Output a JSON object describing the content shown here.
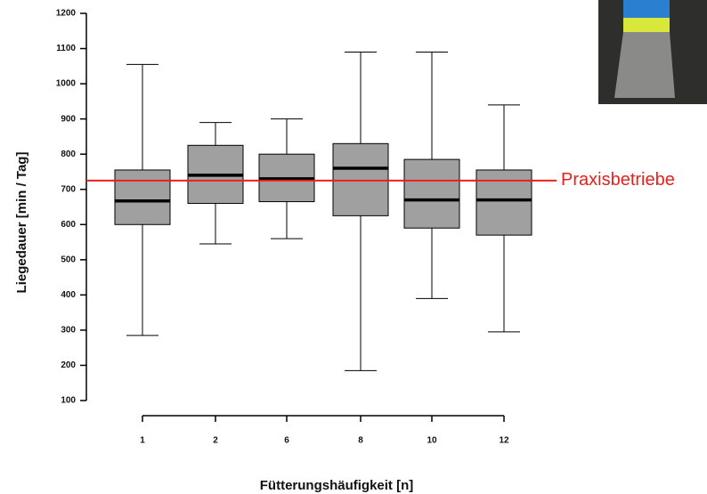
{
  "chart_data": {
    "type": "box",
    "y_label": "Liegedauer [min / Tag]",
    "x_label": "Fütterungshäufigkeit [n]",
    "categories": [
      "1",
      "2",
      "6",
      "8",
      "10",
      "12"
    ],
    "boxes": [
      {
        "whislo": 285,
        "q1": 600,
        "med": 667,
        "q3": 755,
        "whishi": 1055
      },
      {
        "whislo": 545,
        "q1": 660,
        "med": 740,
        "q3": 825,
        "whishi": 890
      },
      {
        "whislo": 560,
        "q1": 665,
        "med": 730,
        "q3": 800,
        "whishi": 900
      },
      {
        "whislo": 185,
        "q1": 625,
        "med": 760,
        "q3": 830,
        "whishi": 1090
      },
      {
        "whislo": 390,
        "q1": 590,
        "med": 670,
        "q3": 785,
        "whishi": 1090
      },
      {
        "whislo": 295,
        "q1": 570,
        "med": 670,
        "q3": 755,
        "whishi": 940
      }
    ],
    "color": "#a0a0a0",
    "ylim": [
      100,
      1200
    ],
    "yticks": [
      100,
      200,
      300,
      400,
      500,
      600,
      700,
      800,
      900,
      1000,
      1100,
      1200
    ],
    "reference_line": {
      "value": 725,
      "label": "Praxisbetriebe",
      "color": "#e8201c"
    }
  }
}
